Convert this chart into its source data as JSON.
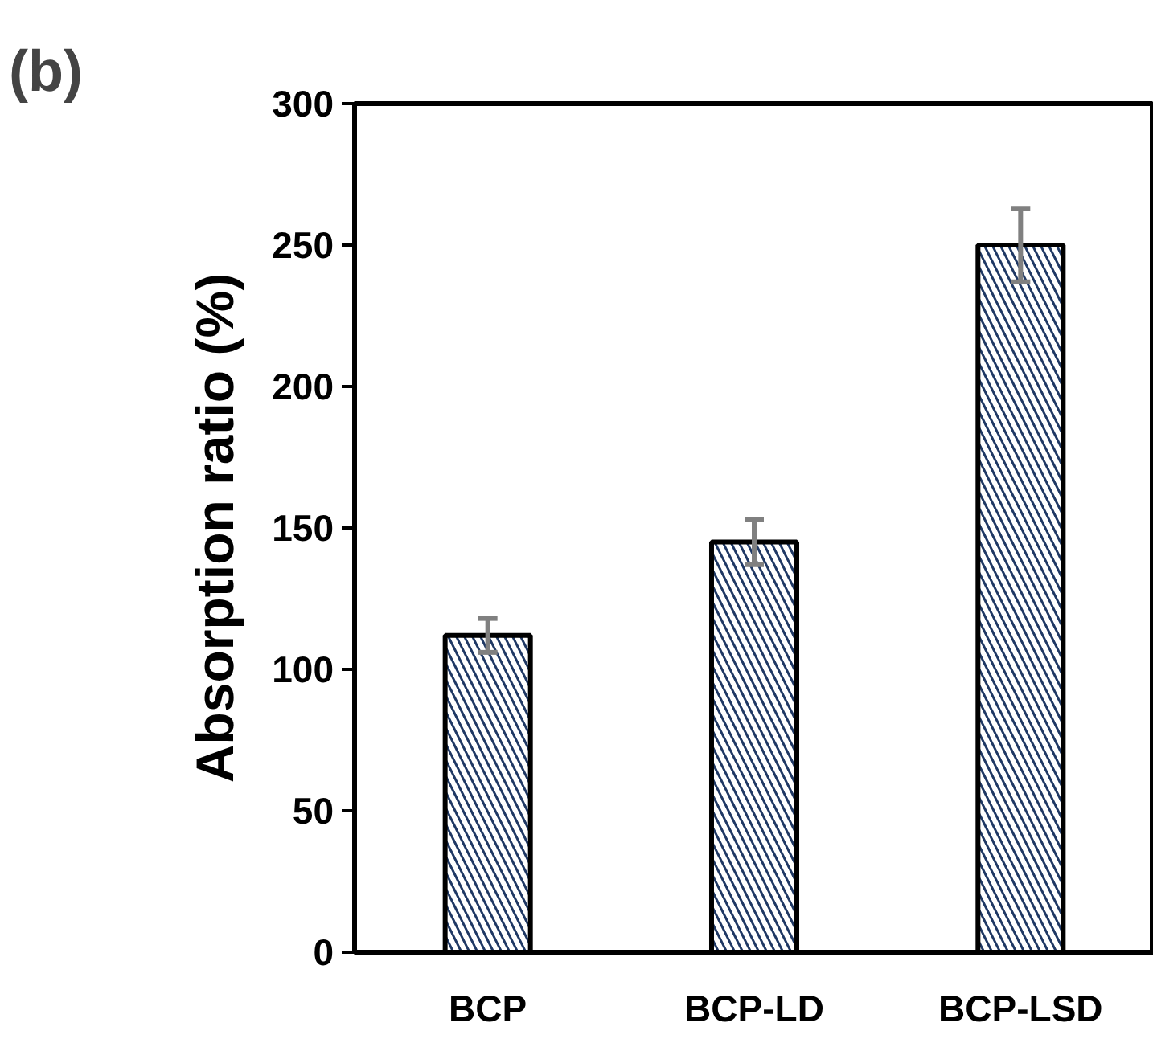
{
  "chart_data": {
    "type": "bar",
    "annotations": [
      "(b)"
    ],
    "ylabel": "Absorption ratio (%)",
    "categories": [
      "BCP",
      "BCP-LD",
      "BCP-LSD"
    ],
    "values": [
      112,
      145,
      250
    ],
    "errors": [
      6,
      8,
      13
    ],
    "color": "#1f3864",
    "ylim": [
      0,
      300
    ],
    "yticks": [
      0,
      50,
      100,
      150,
      200,
      250,
      300
    ],
    "grid": false
  }
}
